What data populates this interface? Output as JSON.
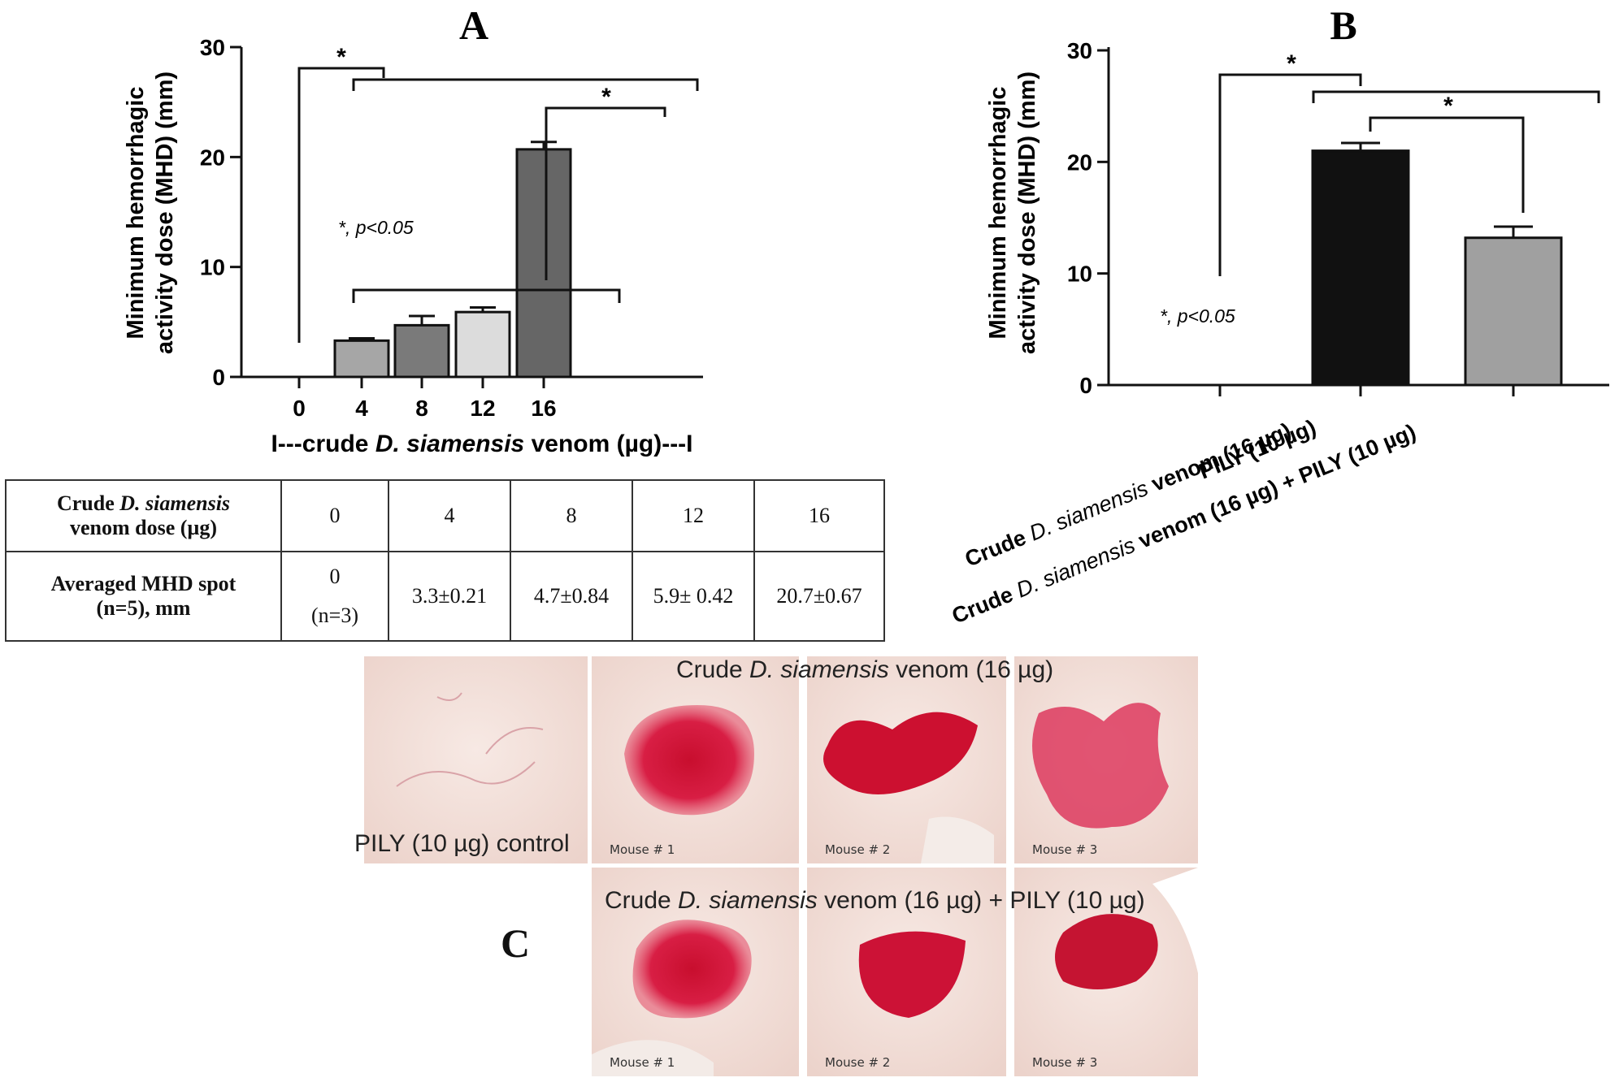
{
  "panel_a": {
    "letter": "A",
    "ylabel_line1": "Minimum hemorrhagic",
    "ylabel_line2": "activity dose (MHD) (mm)",
    "xlabel_prefix": "I---crude ",
    "xlabel_species": "D. siamensis",
    "xlabel_suffix": " venom (µg)---I",
    "significance_note": "*, p<0.05",
    "star": "*"
  },
  "panel_b": {
    "letter": "B",
    "ylabel_line1": "Minimum hemorrhagic",
    "ylabel_line2": "activity dose (MHD) (mm)",
    "significance_note": "*, p<0.05",
    "star": "*",
    "cat1": "PILY (10 µg)",
    "cat2_a": "Crude ",
    "cat2_b": "D. siamensis",
    "cat2_c": " venom (16 µg)",
    "cat3_a": "Crude ",
    "cat3_b": "D. siamensis",
    "cat3_c": " venom (16 µg) + PILY (10 µg)"
  },
  "chart_data": [
    {
      "type": "bar",
      "categories": [
        "0",
        "4",
        "8",
        "12",
        "16"
      ],
      "values": [
        0,
        3.3,
        4.7,
        5.9,
        20.7
      ],
      "errors": [
        0,
        0.21,
        0.84,
        0.42,
        0.67
      ],
      "bar_colors": [
        "#ffffff",
        "#a6a6a6",
        "#7a7a7a",
        "#dcdcdc",
        "#666666"
      ],
      "yticks": [
        "0",
        "10",
        "20",
        "30"
      ],
      "ylim": [
        0,
        30
      ]
    },
    {
      "type": "bar",
      "categories": [
        "PILY (10 µg)",
        "Crude D. siamensis venom (16 µg)",
        "Crude D. siamensis venom (16 µg) + PILY (10 µg)"
      ],
      "values": [
        0,
        21.0,
        13.2
      ],
      "errors": [
        0,
        0.7,
        1.0
      ],
      "bar_colors": [
        "#ffffff",
        "#111111",
        "#a0a0a0"
      ],
      "yticks": [
        "0",
        "10",
        "20",
        "30"
      ],
      "ylim": [
        0,
        30
      ]
    }
  ],
  "table": {
    "header_a": "Crude ",
    "header_b": "D. siamensis",
    "header_c": "venom dose (µg)",
    "row_label_a": "Averaged MHD spot",
    "row_label_b": "(n=5), mm",
    "doses": [
      "0",
      "4",
      "8",
      "12",
      "16"
    ],
    "first_value": "0",
    "first_n": "(n=3)",
    "values": [
      "3.3±0.21",
      "4.7±0.84",
      "5.9± 0.42",
      "20.7±0.67"
    ]
  },
  "panel_c": {
    "letter": "C",
    "control_caption": "PILY (10 µg) control",
    "row1_caption_a": "Crude ",
    "row1_caption_b": "D. siamensis",
    "row1_caption_c": " venom (16 µg)",
    "row2_caption_a": "Crude ",
    "row2_caption_b": "D. siamensis",
    "row2_caption_c": " venom (16 µg) + PILY (10 µg)",
    "mouse1": "Mouse # 1",
    "mouse2": "Mouse # 2",
    "mouse3": "Mouse # 3"
  }
}
